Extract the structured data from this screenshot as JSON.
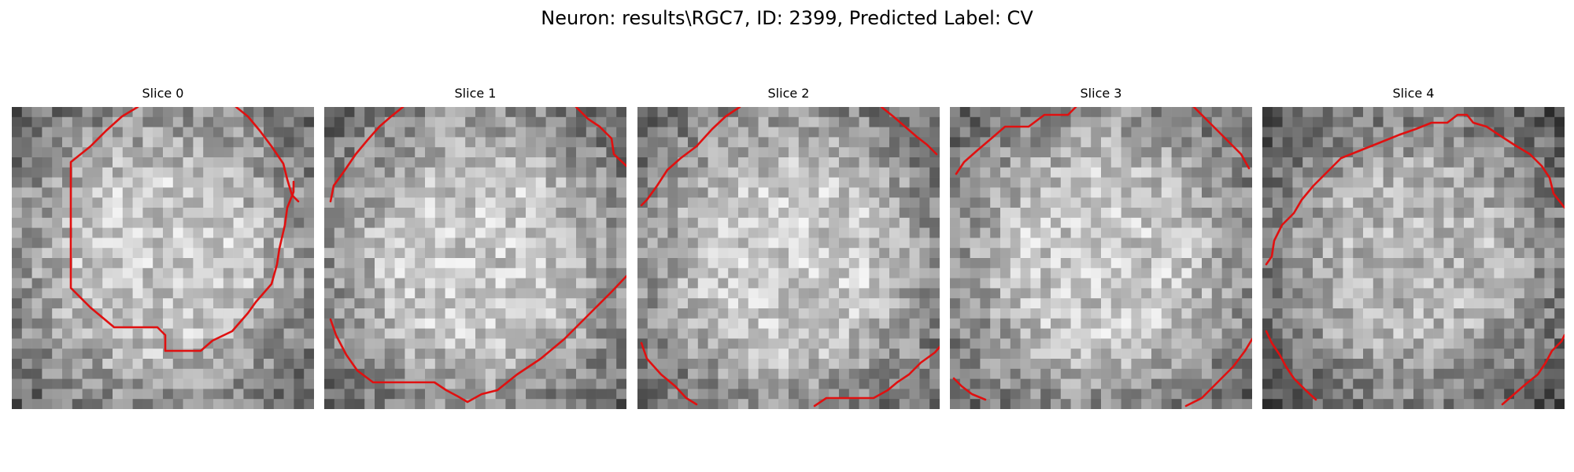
{
  "figure": {
    "title": "Neuron: results\\RGC7, ID: 2399, Predicted Label: CV"
  },
  "panels": [
    {
      "title": "Slice 0"
    },
    {
      "title": "Slice 1"
    },
    {
      "title": "Slice 2"
    },
    {
      "title": "Slice 3"
    },
    {
      "title": "Slice 4"
    }
  ],
  "colors": {
    "contour": "#e01010",
    "background": "#ffffff"
  }
}
